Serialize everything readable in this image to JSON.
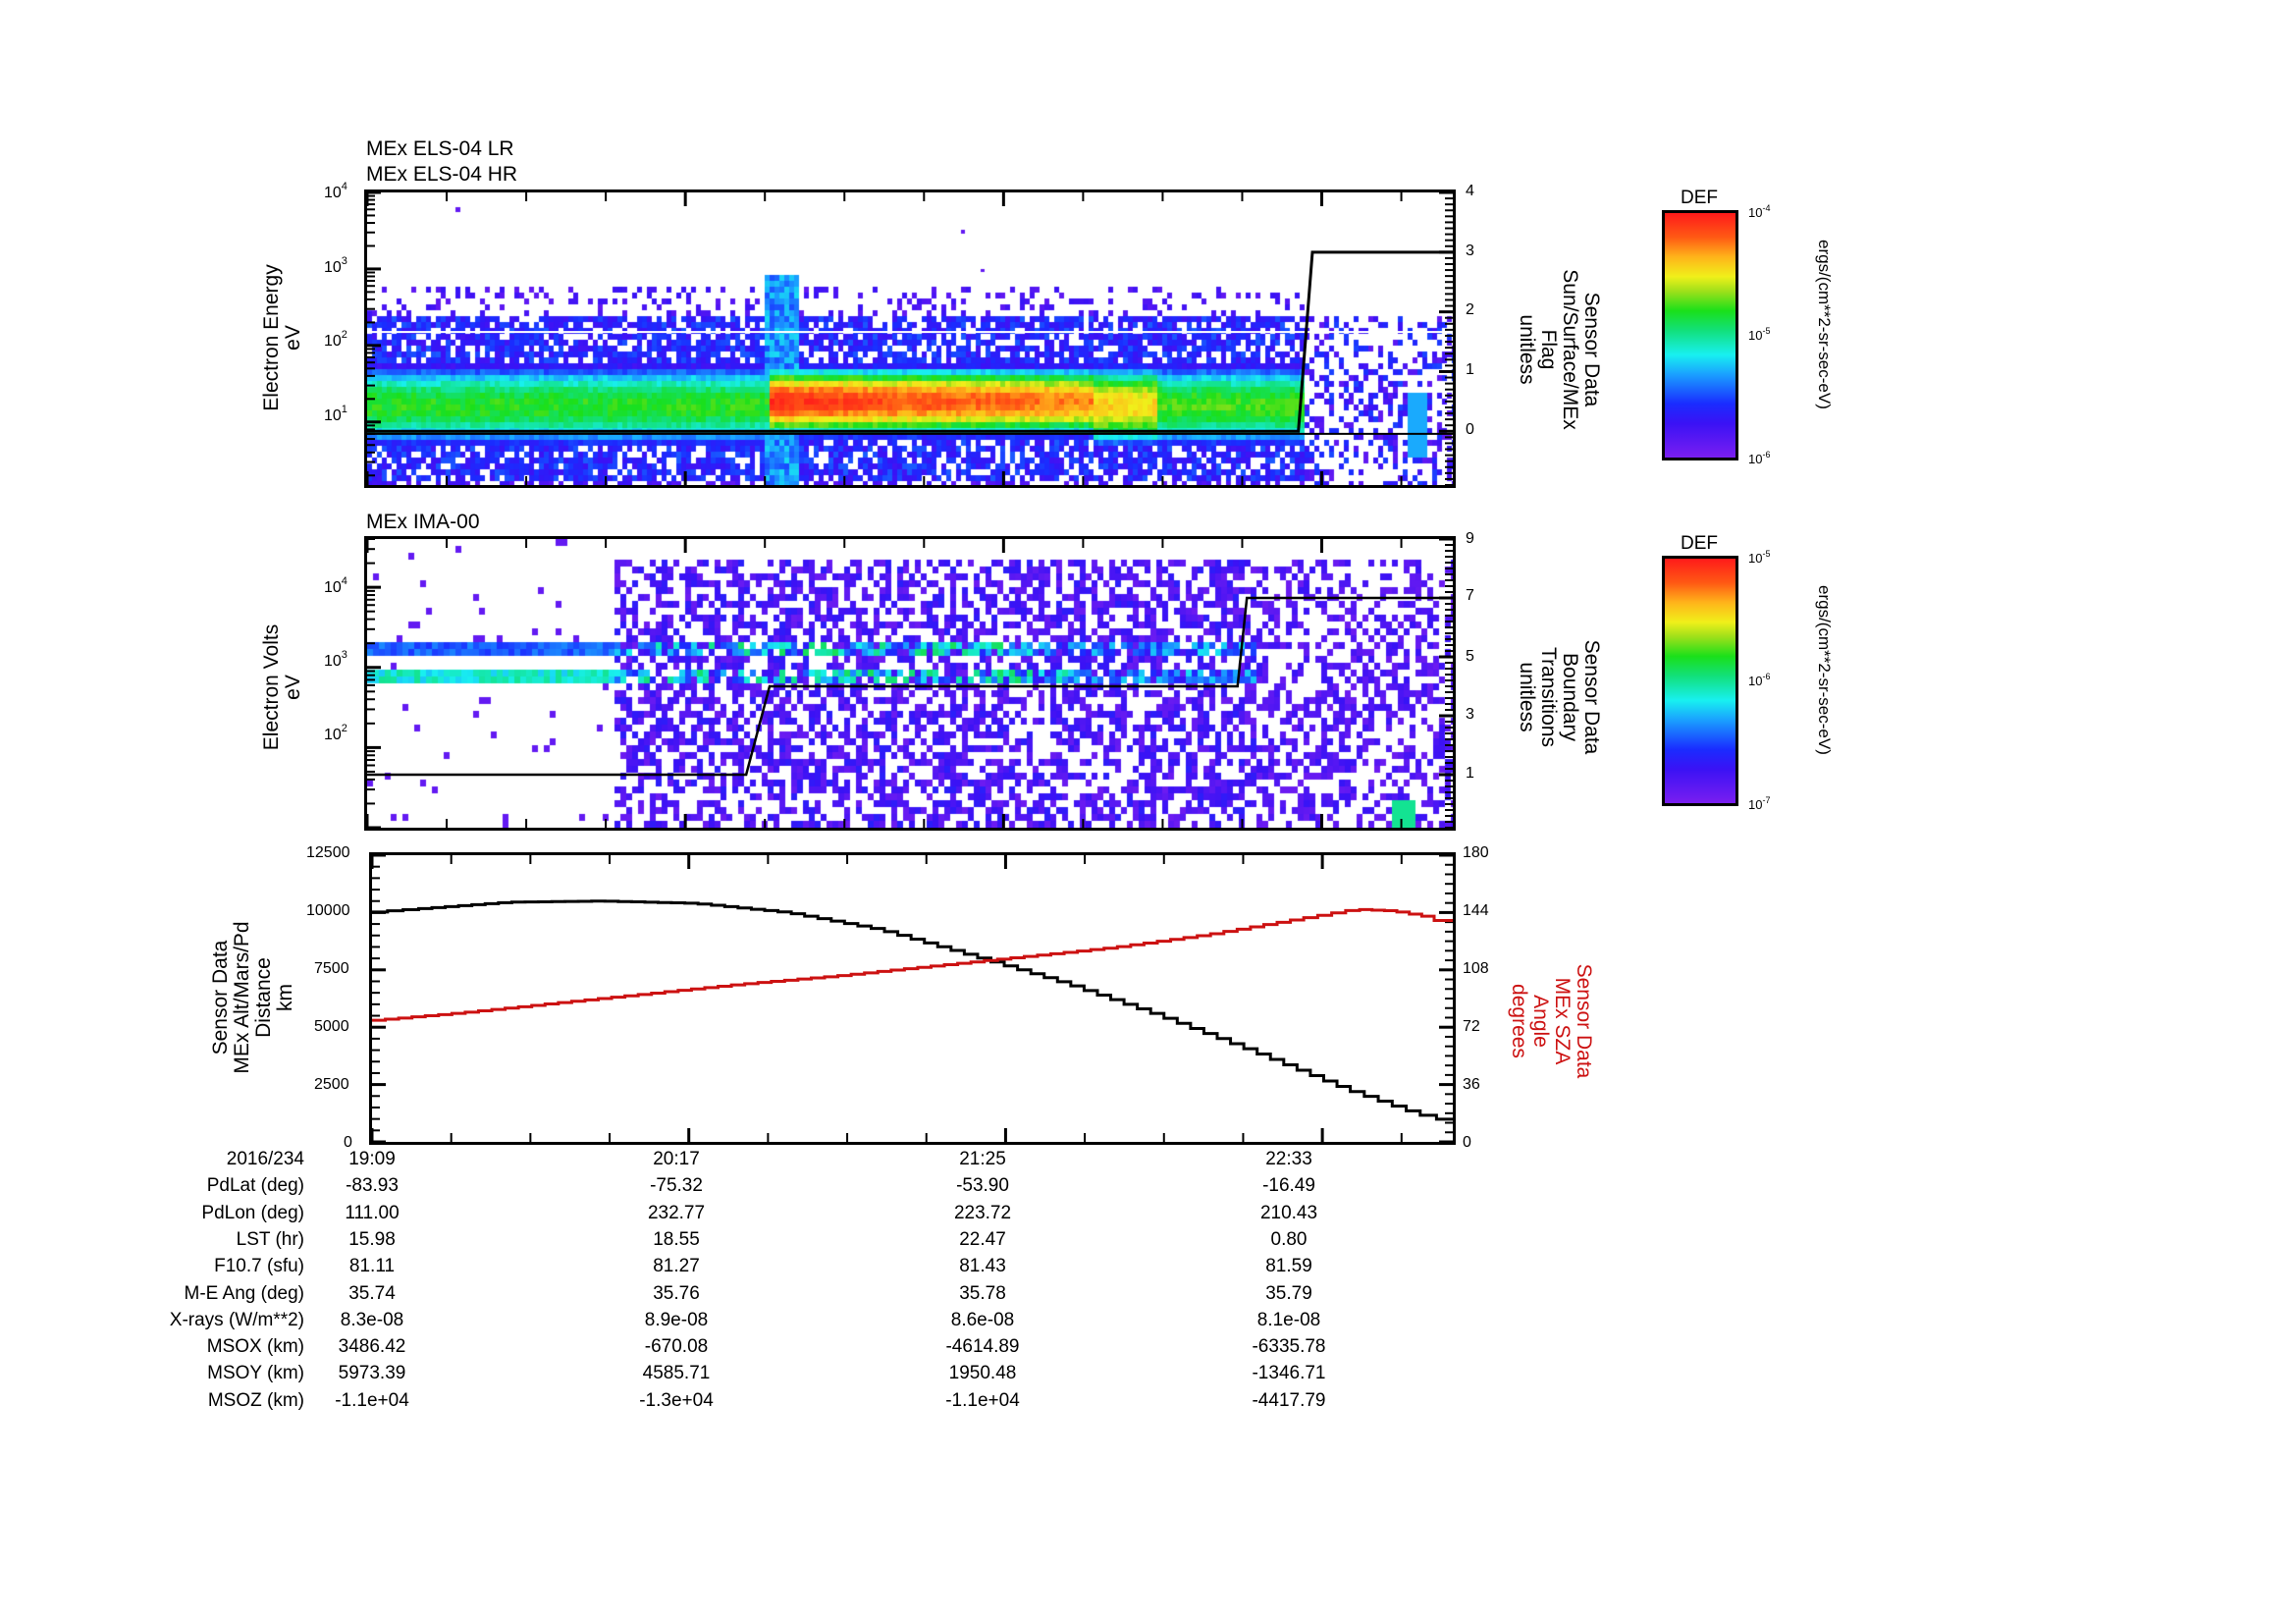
{
  "panels": {
    "els": {
      "titles": [
        "MEx ELS-04 LR",
        "MEx ELS-04 HR"
      ],
      "left_axis_label": [
        "Electron Energy",
        "eV"
      ],
      "left_ticks": [
        {
          "base": "10",
          "exp": "4"
        },
        {
          "base": "10",
          "exp": "3"
        },
        {
          "base": "10",
          "exp": "2"
        },
        {
          "base": "10",
          "exp": "1"
        }
      ],
      "right_axis_label": [
        "Sensor Data",
        "Sun/Surface/MEx",
        "Flag",
        "unitless"
      ],
      "right_ticks": [
        "4",
        "3",
        "2",
        "1",
        "0"
      ],
      "colorbar": {
        "title": "DEF",
        "ticks": [
          {
            "base": "10",
            "exp": "-4"
          },
          {
            "base": "10",
            "exp": "-5"
          },
          {
            "base": "10",
            "exp": "-6"
          }
        ],
        "unit": "ergs/(cm**2-sr-sec-eV)"
      }
    },
    "ima": {
      "titles": [
        "MEx IMA-00"
      ],
      "left_axis_label": [
        "Electron Volts",
        "eV"
      ],
      "left_ticks": [
        {
          "base": "10",
          "exp": "4"
        },
        {
          "base": "10",
          "exp": "3"
        },
        {
          "base": "10",
          "exp": "2"
        }
      ],
      "right_axis_label": [
        "Sensor Data",
        "Boundary",
        "Transitions",
        "unitless"
      ],
      "right_ticks": [
        "9",
        "7",
        "5",
        "3",
        "1"
      ],
      "colorbar": {
        "title": "DEF",
        "ticks": [
          {
            "base": "10",
            "exp": "-5"
          },
          {
            "base": "10",
            "exp": "-6"
          },
          {
            "base": "10",
            "exp": "-7"
          }
        ],
        "unit": "ergs/(cm**2-sr-sec-eV)"
      }
    },
    "orbit": {
      "left_axis_label": [
        "Sensor Data",
        "MEx Alt/Mars/Pd",
        "Distance",
        "km"
      ],
      "left_ticks": [
        "12500",
        "10000",
        "7500",
        "5000",
        "2500",
        "0"
      ],
      "right_axis_label": [
        "Sensor Data",
        "MEx SZA",
        "Angle",
        "degrees"
      ],
      "right_ticks": [
        "180",
        "144",
        "108",
        "72",
        "36",
        "0"
      ],
      "right_label_color": "#d01818"
    }
  },
  "ephemeris": {
    "rows": [
      {
        "label": "2016/234",
        "values": [
          "19:09",
          "20:17",
          "21:25",
          "22:33"
        ]
      },
      {
        "label": "PdLat (deg)",
        "values": [
          "-83.93",
          "-75.32",
          "-53.90",
          "-16.49"
        ]
      },
      {
        "label": "PdLon (deg)",
        "values": [
          "111.00",
          "232.77",
          "223.72",
          "210.43"
        ]
      },
      {
        "label": "LST (hr)",
        "values": [
          "15.98",
          "18.55",
          "22.47",
          "0.80"
        ]
      },
      {
        "label": "F10.7 (sfu)",
        "values": [
          "81.11",
          "81.27",
          "81.43",
          "81.59"
        ]
      },
      {
        "label": "M-E Ang (deg)",
        "values": [
          "35.74",
          "35.76",
          "35.78",
          "35.79"
        ]
      },
      {
        "label": "X-rays (W/m**2)",
        "values": [
          "8.3e-08",
          "8.9e-08",
          "8.6e-08",
          "8.1e-08"
        ]
      },
      {
        "label": "MSOX (km)",
        "values": [
          "3486.42",
          "-670.08",
          "-4614.89",
          "-6335.78"
        ]
      },
      {
        "label": "MSOY (km)",
        "values": [
          "5973.39",
          "4585.71",
          "1950.48",
          "-1346.71"
        ]
      },
      {
        "label": "MSOZ (km)",
        "values": [
          "-1.1e+04",
          "-1.3e+04",
          "-1.1e+04",
          "-4417.79"
        ]
      }
    ]
  },
  "chart_data": [
    {
      "type": "heatmap",
      "title": "MEx ELS-04 LR / MEx ELS-04 HR",
      "xlabel": "UT (2016/234)",
      "ylabel": "Electron Energy (eV)",
      "yscale": "log",
      "ylim": [
        1.5,
        10000
      ],
      "x_ticks": [
        "19:09",
        "20:17",
        "21:25",
        "22:33"
      ],
      "x_range_minutes": [
        0,
        232
      ],
      "colorbar": {
        "label": "DEF ergs/(cm**2-sr-sec-eV)",
        "range": [
          1e-06,
          0.0001
        ],
        "scale": "log"
      },
      "features": [
        {
          "desc": "steady green band 8-80 eV",
          "t_start_min": 0,
          "t_end_min": 85,
          "e_low": 8,
          "e_high": 80
        },
        {
          "desc": "burst extending to ~800 eV",
          "t_min": 85
        },
        {
          "desc": "intense red band 10-60 eV",
          "t_start_min": 86,
          "t_end_min": 155,
          "e_low": 10,
          "e_high": 60
        },
        {
          "desc": "yellow/green band",
          "t_start_min": 155,
          "t_end_min": 200
        },
        {
          "desc": "sparse scatter after flag transition",
          "t_start_min": 200,
          "t_end_min": 232
        }
      ],
      "overlay_line": {
        "name": "Sun/Surface/MEx Flag",
        "axis": "right",
        "ylim": [
          -0.9,
          4
        ],
        "x_min": [
          0,
          199,
          202,
          232
        ],
        "y": [
          0,
          0,
          3,
          3
        ]
      },
      "horizontal_guides_eV": [
        7,
        150
      ]
    },
    {
      "type": "heatmap",
      "title": "MEx IMA-00",
      "xlabel": "UT (2016/234)",
      "ylabel": "Electron Volts (eV)",
      "yscale": "log",
      "ylim": [
        10,
        40000
      ],
      "x_ticks": [
        "19:09",
        "20:17",
        "21:25",
        "22:33"
      ],
      "x_range_minutes": [
        0,
        232
      ],
      "colorbar": {
        "label": "DEF ergs/(cm**2-sr-sec-eV)",
        "range": [
          1e-07,
          1e-05
        ],
        "scale": "log"
      },
      "features": [
        {
          "desc": "two narrow bands at ~800 eV and ~1800 eV",
          "t_start_min": 0,
          "t_end_min": 52
        },
        {
          "desc": "broadband noise plus banded structure",
          "t_start_min": 52,
          "t_end_min": 185
        },
        {
          "desc": "sparse noise",
          "t_start_min": 185,
          "t_end_min": 232
        }
      ],
      "overlay_line": {
        "name": "Boundary Transitions",
        "axis": "right",
        "ylim": [
          -0.8,
          9
        ],
        "x_min": [
          0,
          81,
          86,
          186,
          188,
          232
        ],
        "y": [
          1,
          1,
          4,
          4,
          7,
          7
        ]
      }
    },
    {
      "type": "line",
      "title": "",
      "x_ticks": [
        "19:09",
        "20:17",
        "21:25",
        "22:33"
      ],
      "x_range_minutes": [
        0,
        232
      ],
      "series": [
        {
          "name": "MEx Alt/Mars/Pd Distance (km)",
          "axis": "left",
          "color": "#000000",
          "x_min": [
            0,
            10,
            30,
            50,
            70,
            90,
            110,
            130,
            150,
            170,
            190,
            210,
            225,
            232
          ],
          "y": [
            10000,
            10150,
            10450,
            10500,
            10400,
            10000,
            9250,
            8100,
            6900,
            5500,
            3950,
            2300,
            1250,
            900
          ]
        },
        {
          "name": "MEx SZA Angle (degrees)",
          "axis": "right",
          "color": "#cc1111",
          "x_min": [
            0,
            20,
            40,
            60,
            80,
            100,
            120,
            140,
            160,
            180,
            200,
            212,
            220,
            228,
            232
          ],
          "y": [
            76,
            81,
            87,
            93,
            99,
            104,
            110,
            116,
            122,
            130,
            140,
            146,
            145,
            141,
            137
          ]
        }
      ],
      "ylabel": "Sensor Data MEx Alt/Mars/Pd Distance (km)",
      "ylim": [
        0,
        12500
      ],
      "y2label": "Sensor Data MEx SZA Angle (degrees)",
      "y2lim": [
        0,
        180
      ]
    }
  ]
}
